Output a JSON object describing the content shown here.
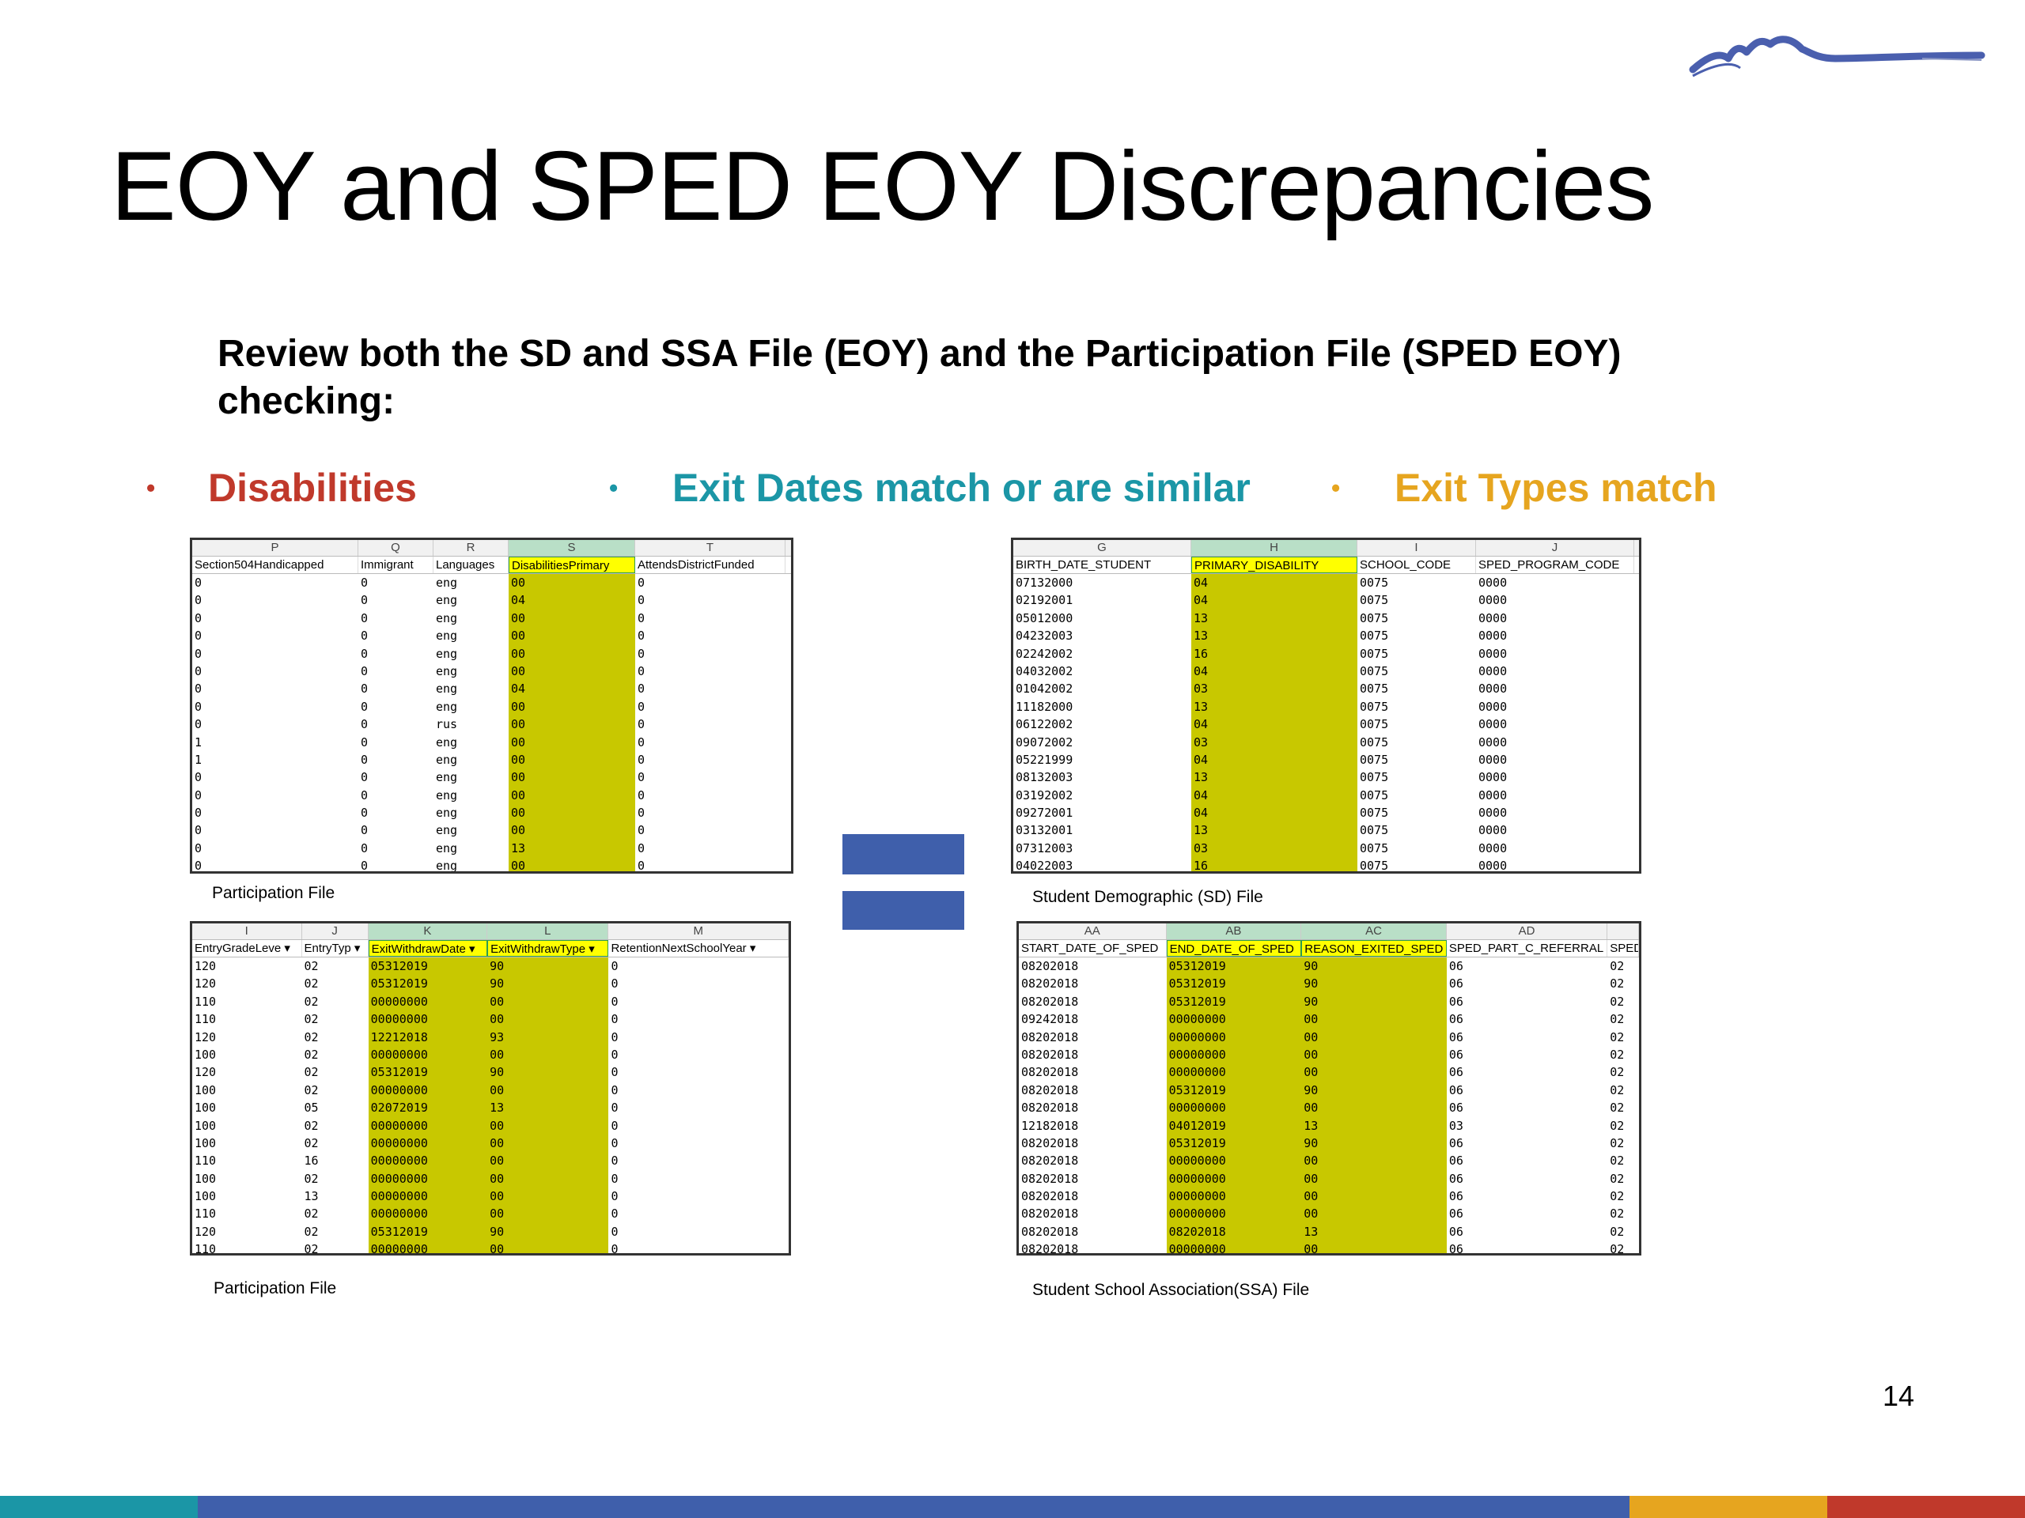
{
  "slide": {
    "title": "EOY and SPED EOY Discrepancies",
    "intro": "Review both the SD and SSA File (EOY) and the Participation File (SPED EOY) checking:",
    "page_number": "14"
  },
  "bullets": [
    {
      "dot": "•",
      "label": "Disabilities",
      "color": "#c0392b"
    },
    {
      "dot": "•",
      "label": "Exit Dates match or are similar",
      "color": "#1b96a6"
    },
    {
      "dot": "•",
      "label": "Exit Types match",
      "color": "#e6a51f"
    }
  ],
  "sheets": {
    "participation_top": {
      "caption": "Participation File",
      "col_letters": [
        "P",
        "Q",
        "R",
        "S",
        "T"
      ],
      "headers": [
        "Section504Handicapped",
        "Immigrant",
        "Languages",
        "DisabilitiesPrimary",
        "AttendsDistrictFunded"
      ],
      "rows": [
        [
          "0",
          "0",
          "eng",
          "00",
          "0"
        ],
        [
          "0",
          "0",
          "eng",
          "04",
          "0"
        ],
        [
          "0",
          "0",
          "eng",
          "00",
          "0"
        ],
        [
          "0",
          "0",
          "eng",
          "00",
          "0"
        ],
        [
          "0",
          "0",
          "eng",
          "00",
          "0"
        ],
        [
          "0",
          "0",
          "eng",
          "00",
          "0"
        ],
        [
          "0",
          "0",
          "eng",
          "04",
          "0"
        ],
        [
          "0",
          "0",
          "eng",
          "00",
          "0"
        ],
        [
          "0",
          "0",
          "rus",
          "00",
          "0"
        ],
        [
          "1",
          "0",
          "eng",
          "00",
          "0"
        ],
        [
          "1",
          "0",
          "eng",
          "00",
          "0"
        ],
        [
          "0",
          "0",
          "eng",
          "00",
          "0"
        ],
        [
          "0",
          "0",
          "eng",
          "00",
          "0"
        ],
        [
          "0",
          "0",
          "eng",
          "00",
          "0"
        ],
        [
          "0",
          "0",
          "eng",
          "00",
          "0"
        ],
        [
          "0",
          "0",
          "eng",
          "13",
          "0"
        ],
        [
          "0",
          "0",
          "eng",
          "00",
          "0"
        ]
      ]
    },
    "sd_file": {
      "caption": "Student Demographic (SD) File",
      "col_letters": [
        "G",
        "H",
        "I",
        "J"
      ],
      "headers": [
        "BIRTH_DATE_STUDENT",
        "PRIMARY_DISABILITY",
        "SCHOOL_CODE",
        "SPED_PROGRAM_CODE"
      ],
      "rows": [
        [
          "07132000",
          "04",
          "0075",
          "0000"
        ],
        [
          "02192001",
          "04",
          "0075",
          "0000"
        ],
        [
          "05012000",
          "13",
          "0075",
          "0000"
        ],
        [
          "04232003",
          "13",
          "0075",
          "0000"
        ],
        [
          "02242002",
          "16",
          "0075",
          "0000"
        ],
        [
          "04032002",
          "04",
          "0075",
          "0000"
        ],
        [
          "01042002",
          "03",
          "0075",
          "0000"
        ],
        [
          "11182000",
          "13",
          "0075",
          "0000"
        ],
        [
          "06122002",
          "04",
          "0075",
          "0000"
        ],
        [
          "09072002",
          "03",
          "0075",
          "0000"
        ],
        [
          "05221999",
          "04",
          "0075",
          "0000"
        ],
        [
          "08132003",
          "13",
          "0075",
          "0000"
        ],
        [
          "03192002",
          "04",
          "0075",
          "0000"
        ],
        [
          "09272001",
          "04",
          "0075",
          "0000"
        ],
        [
          "03132001",
          "13",
          "0075",
          "0000"
        ],
        [
          "07312003",
          "03",
          "0075",
          "0000"
        ],
        [
          "04022003",
          "16",
          "0075",
          "0000"
        ]
      ]
    },
    "participation_bottom": {
      "caption": "Participation File",
      "col_letters": [
        "I",
        "J",
        "K",
        "L",
        "M"
      ],
      "headers": [
        "EntryGradeLeve ▾",
        "EntryTyp ▾",
        "ExitWithdrawDate ▾",
        "ExitWithdrawType ▾",
        "RetentionNextSchoolYear ▾"
      ],
      "rows": [
        [
          "120",
          "02",
          "05312019",
          "90",
          "0"
        ],
        [
          "120",
          "02",
          "05312019",
          "90",
          "0"
        ],
        [
          "110",
          "02",
          "00000000",
          "00",
          "0"
        ],
        [
          "110",
          "02",
          "00000000",
          "00",
          "0"
        ],
        [
          "120",
          "02",
          "12212018",
          "93",
          "0"
        ],
        [
          "100",
          "02",
          "00000000",
          "00",
          "0"
        ],
        [
          "120",
          "02",
          "05312019",
          "90",
          "0"
        ],
        [
          "100",
          "02",
          "00000000",
          "00",
          "0"
        ],
        [
          "100",
          "05",
          "02072019",
          "13",
          "0"
        ],
        [
          "100",
          "02",
          "00000000",
          "00",
          "0"
        ],
        [
          "100",
          "02",
          "00000000",
          "00",
          "0"
        ],
        [
          "110",
          "16",
          "00000000",
          "00",
          "0"
        ],
        [
          "100",
          "02",
          "00000000",
          "00",
          "0"
        ],
        [
          "100",
          "13",
          "00000000",
          "00",
          "0"
        ],
        [
          "110",
          "02",
          "00000000",
          "00",
          "0"
        ],
        [
          "120",
          "02",
          "05312019",
          "90",
          "0"
        ],
        [
          "110",
          "02",
          "00000000",
          "00",
          "0"
        ]
      ]
    },
    "ssa_file": {
      "caption": "Student School Association(SSA) File",
      "col_letters": [
        "AA",
        "AB",
        "AC",
        "AD",
        ""
      ],
      "headers": [
        "START_DATE_OF_SPED",
        "END_DATE_OF_SPED",
        "REASON_EXITED_SPED",
        "SPED_PART_C_REFERRAL",
        "SPED"
      ],
      "rows": [
        [
          "08202018",
          "05312019",
          "90",
          "06",
          "02"
        ],
        [
          "08202018",
          "05312019",
          "90",
          "06",
          "02"
        ],
        [
          "08202018",
          "05312019",
          "90",
          "06",
          "02"
        ],
        [
          "09242018",
          "00000000",
          "00",
          "06",
          "02"
        ],
        [
          "08202018",
          "00000000",
          "00",
          "06",
          "02"
        ],
        [
          "08202018",
          "00000000",
          "00",
          "06",
          "02"
        ],
        [
          "08202018",
          "00000000",
          "00",
          "06",
          "02"
        ],
        [
          "08202018",
          "05312019",
          "90",
          "06",
          "02"
        ],
        [
          "08202018",
          "00000000",
          "00",
          "06",
          "02"
        ],
        [
          "12182018",
          "04012019",
          "13",
          "03",
          "02"
        ],
        [
          "08202018",
          "05312019",
          "90",
          "06",
          "02"
        ],
        [
          "08202018",
          "00000000",
          "00",
          "06",
          "02"
        ],
        [
          "08202018",
          "00000000",
          "00",
          "06",
          "02"
        ],
        [
          "08202018",
          "00000000",
          "00",
          "06",
          "02"
        ],
        [
          "08202018",
          "00000000",
          "00",
          "06",
          "02"
        ],
        [
          "08202018",
          "08202018",
          "13",
          "06",
          "02"
        ],
        [
          "08202018",
          "00000000",
          "00",
          "06",
          "02"
        ]
      ]
    }
  },
  "colors": {
    "highlight": "#c8c800",
    "header_highlight": "#ffff00",
    "blue_box": "#3f5fab",
    "bottom_bar": [
      "#1b96a6",
      "#3f5fab",
      "#e6a51f",
      "#c0392b"
    ]
  }
}
